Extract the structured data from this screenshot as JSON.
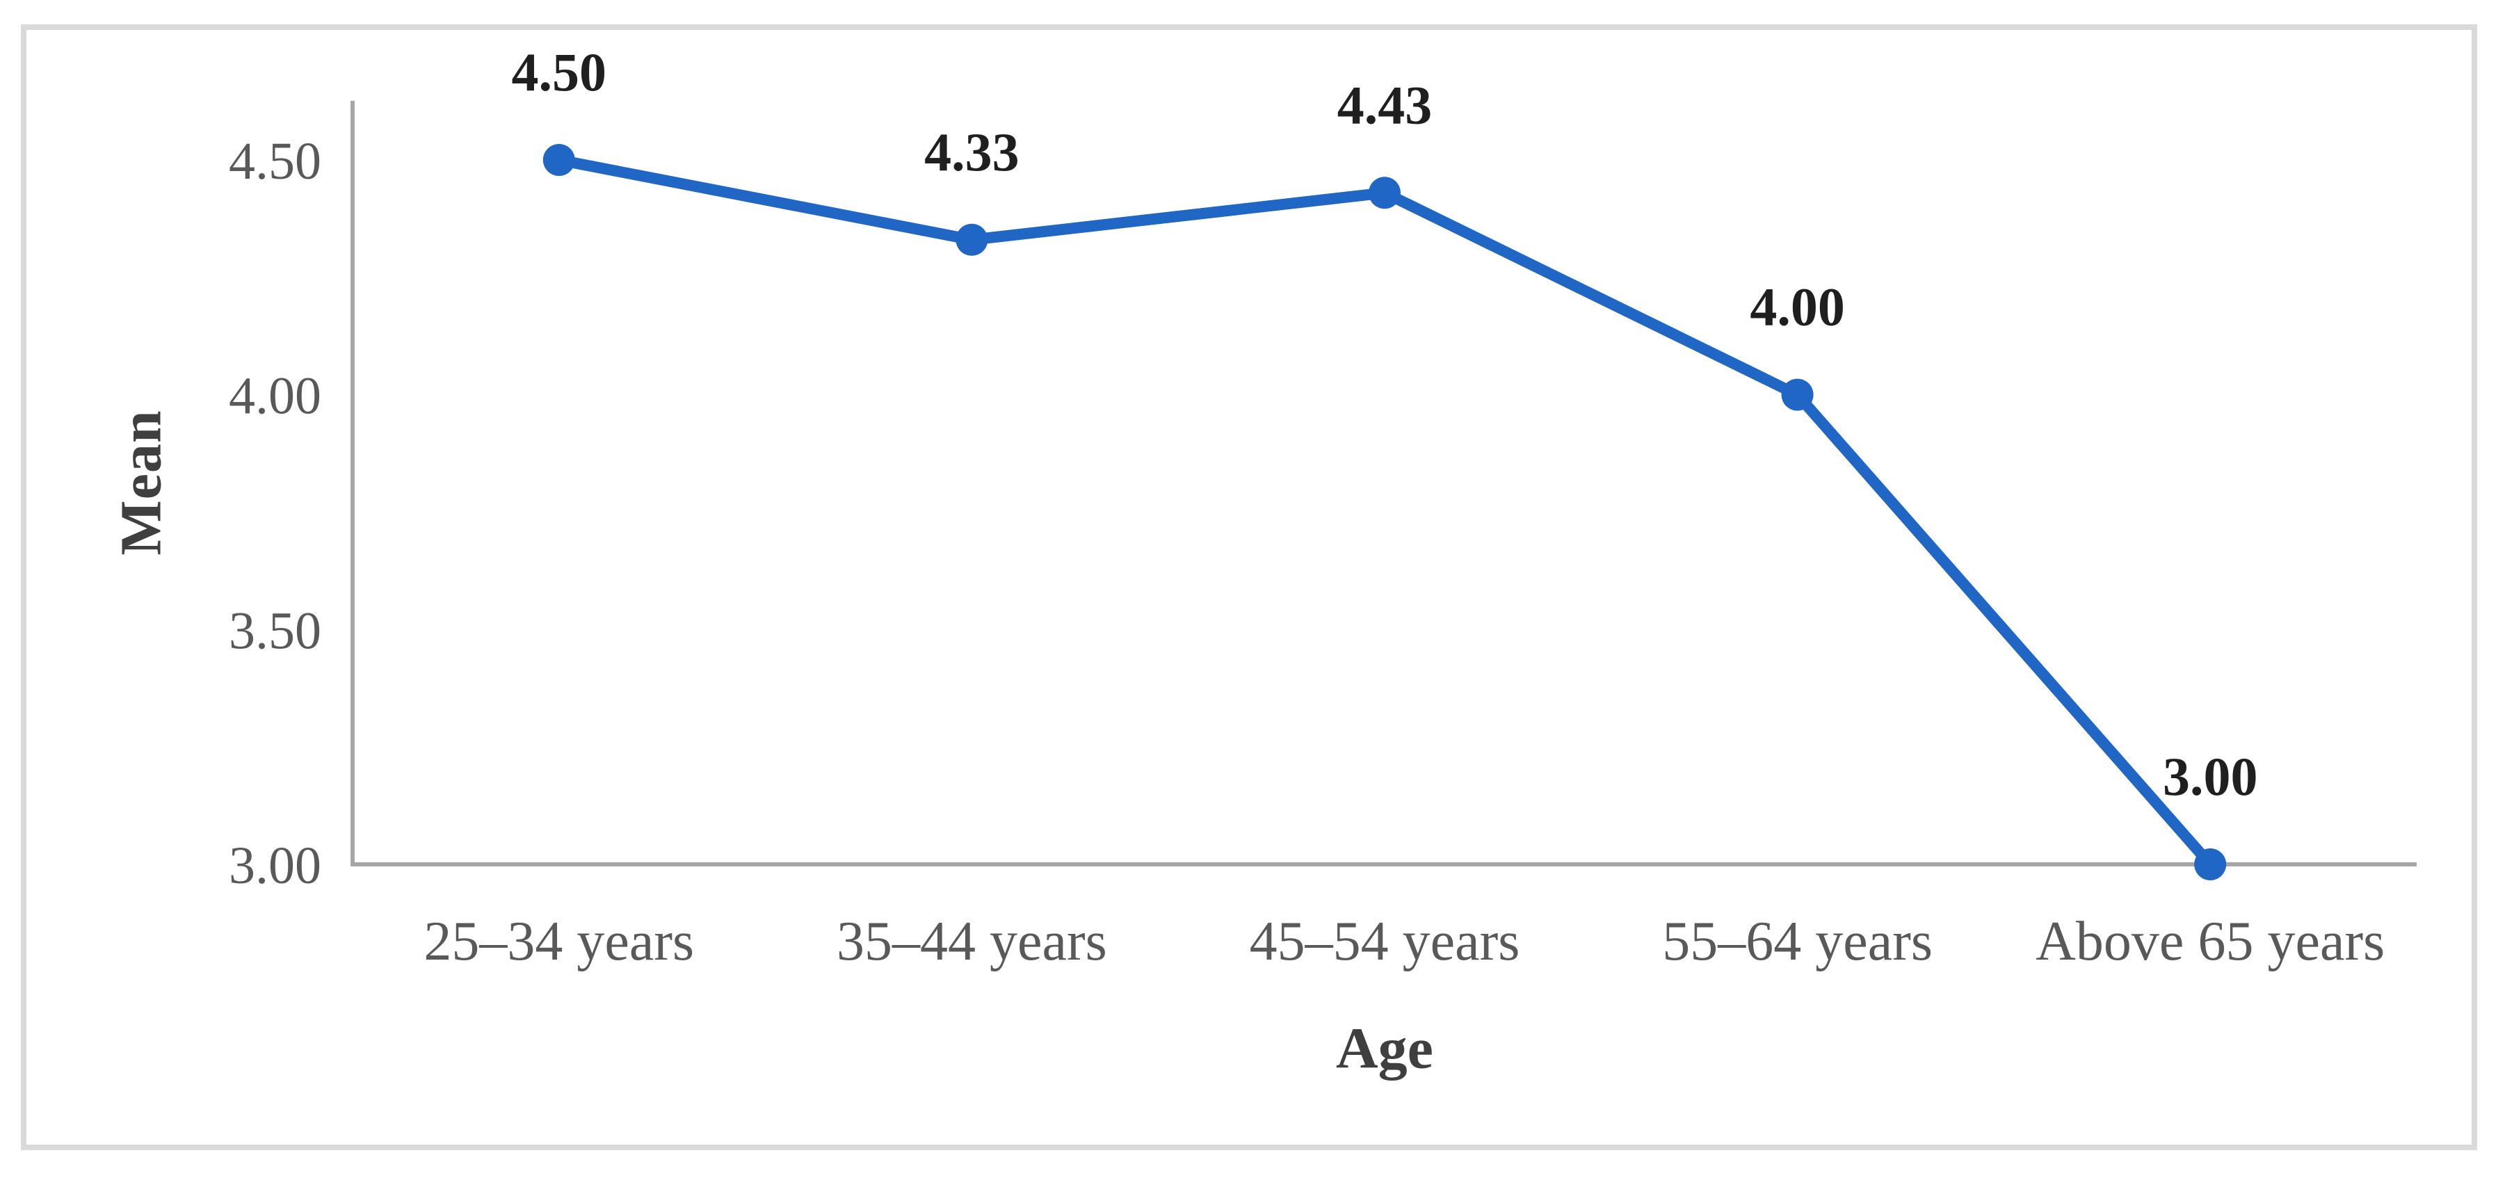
{
  "figure": {
    "background": "#ffffff",
    "frame_border_color": "#d9d9d9"
  },
  "chart_data": {
    "type": "line",
    "title": "",
    "xlabel": "Age",
    "ylabel": "Mean",
    "categories": [
      "25–34 years",
      "35–44 years",
      "45–54 years",
      "55–64 years",
      "Above 65 years"
    ],
    "series": [
      {
        "name": "Mean",
        "values": [
          4.5,
          4.33,
          4.43,
          4.0,
          3.0
        ]
      }
    ],
    "data_labels": [
      "4.50",
      "4.33",
      "4.43",
      "4.00",
      "3.00"
    ],
    "y_ticks": [
      {
        "label": "4.50",
        "value": 4.5
      },
      {
        "label": "4.00",
        "value": 4.0
      },
      {
        "label": "3.50",
        "value": 3.5
      },
      {
        "label": "3.00",
        "value": 3.0
      }
    ],
    "ylim": [
      3.0,
      4.5
    ],
    "grid": false,
    "legend_position": "none",
    "marker": "circle",
    "colors": {
      "line": "#2066c4",
      "marker": "#2066c4",
      "axis": "#a6a6a6",
      "tick_label": "#595959",
      "category_label": "#595959",
      "data_label": "#1f1f1f",
      "axis_title": "#3f3f3f"
    }
  }
}
